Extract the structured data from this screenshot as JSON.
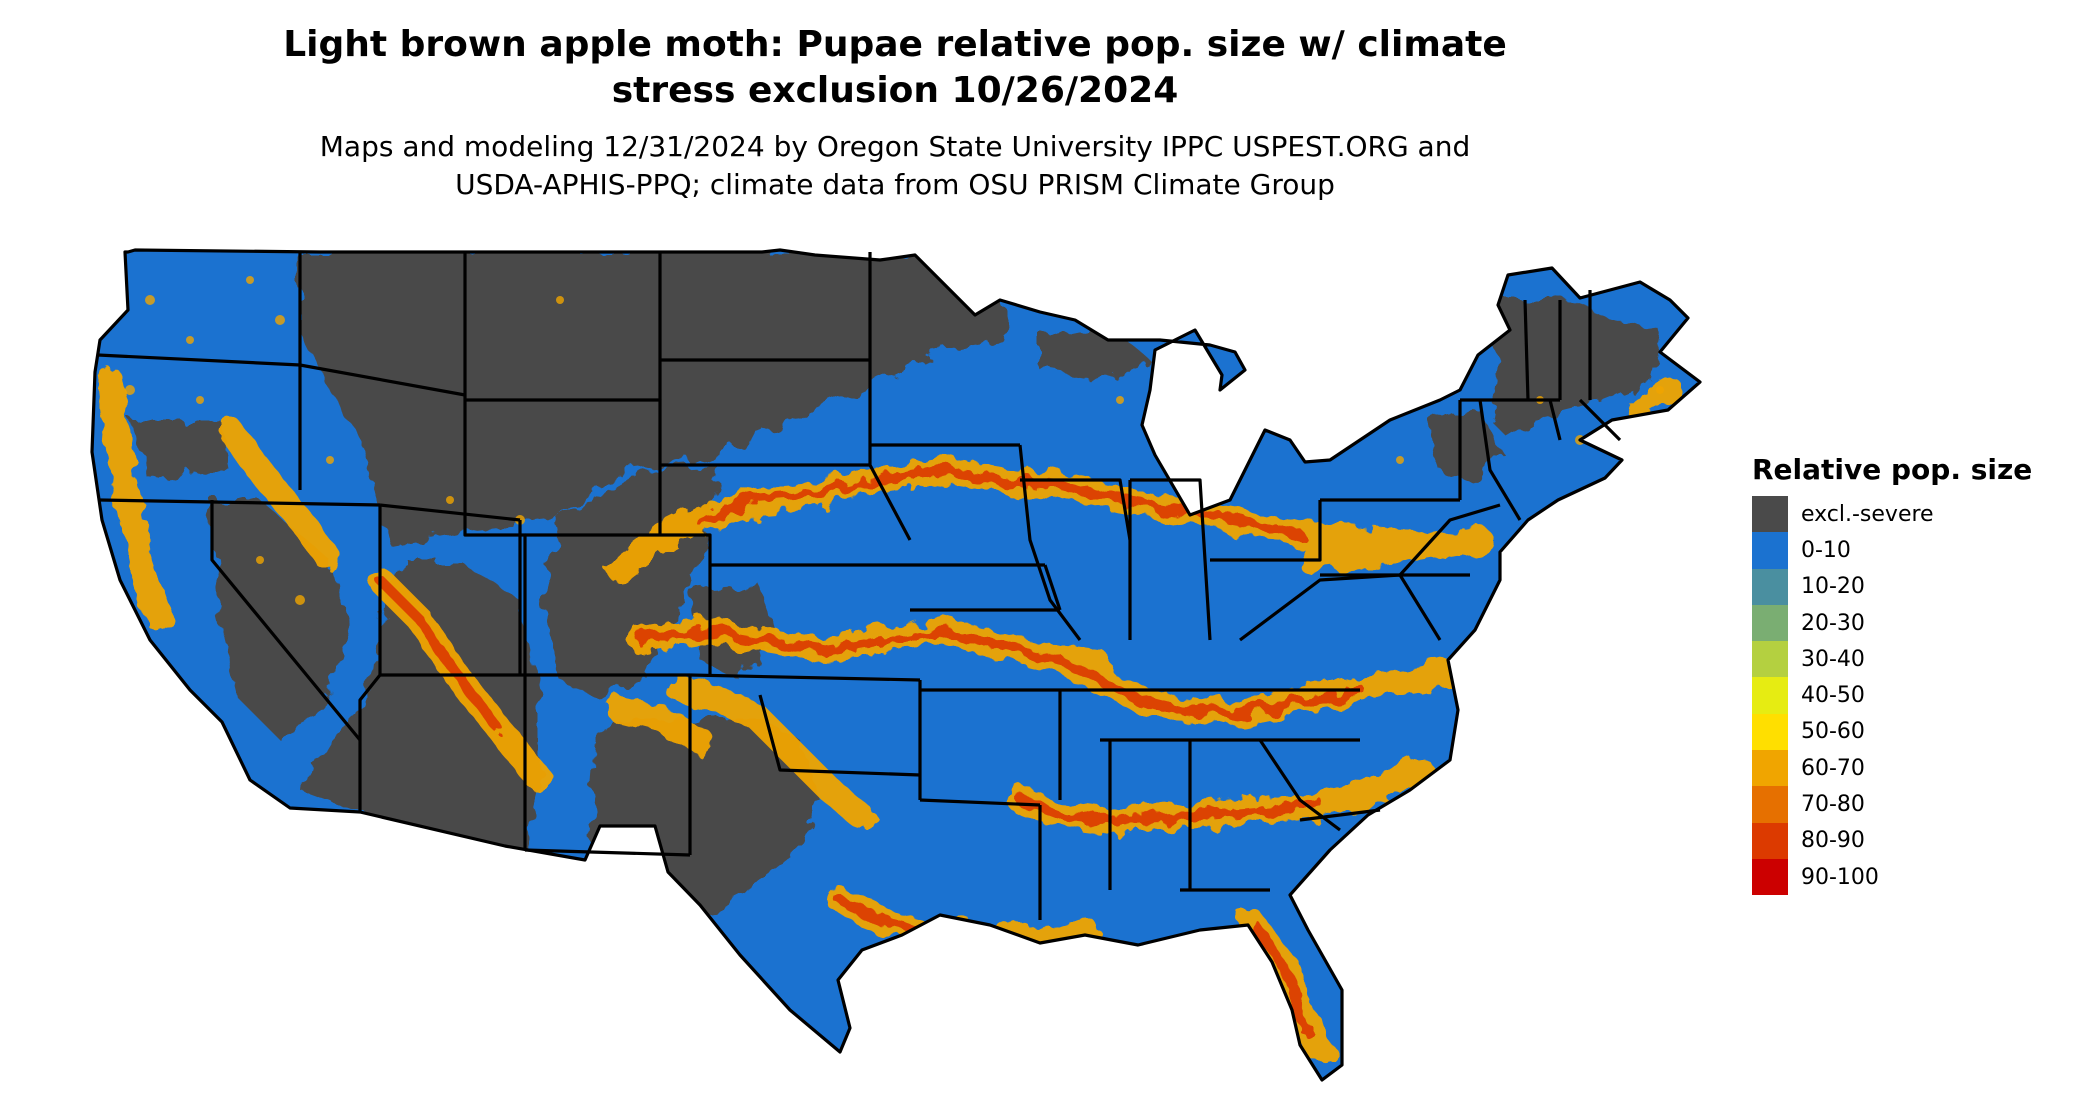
{
  "title_lines": [
    "Light brown apple moth: Pupae relative pop. size w/ climate",
    "stress exclusion 10/26/2024"
  ],
  "subtitle_lines": [
    "Maps and modeling 12/31/2024 by Oregon State University IPPC USPEST.ORG and",
    "USDA-APHIS-PPQ; climate data from OSU PRISM Climate Group"
  ],
  "legend": {
    "title": "Relative pop. size",
    "items": [
      {
        "label": "excl.-severe",
        "color": "#4a4a4a"
      },
      {
        "label": "0-10",
        "color": "#1b72d0"
      },
      {
        "label": "10-20",
        "color": "#4a8fa0"
      },
      {
        "label": "20-30",
        "color": "#7aae72"
      },
      {
        "label": "30-40",
        "color": "#b4d040"
      },
      {
        "label": "40-50",
        "color": "#e6ec12"
      },
      {
        "label": "50-60",
        "color": "#ffdf00"
      },
      {
        "label": "60-70",
        "color": "#f0a500"
      },
      {
        "label": "70-80",
        "color": "#e67000"
      },
      {
        "label": "80-90",
        "color": "#dc3a00"
      },
      {
        "label": "90-100",
        "color": "#cc0000"
      }
    ]
  },
  "colors": {
    "excluded": "#4a4a4a",
    "low": "#1b72d0",
    "mid": "#f0a500",
    "high": "#dc3a00",
    "border": "#000000"
  }
}
